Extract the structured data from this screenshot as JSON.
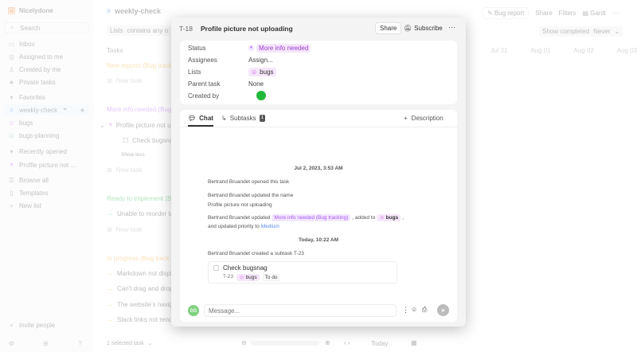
{
  "sidebar": {
    "workspace": "Nicelydone",
    "search_placeholder": "Search",
    "nav": [
      {
        "label": "Inbox",
        "icon": "inbox-icon"
      },
      {
        "label": "Assigned to me",
        "icon": "target-icon"
      },
      {
        "label": "Created by me",
        "icon": "user-icon"
      },
      {
        "label": "Private tasks",
        "icon": "lock-icon"
      }
    ],
    "favorites_label": "Favorites",
    "favorites": [
      {
        "label": "weekly-check",
        "icon": "hash-icon"
      },
      {
        "label": "bugs",
        "icon": "bug-icon"
      },
      {
        "label": "bugs-planning",
        "icon": "bug-icon"
      }
    ],
    "recent_label": "Recently opened",
    "recent": [
      {
        "label": "Profile picture not ..."
      }
    ],
    "browse_all": "Browse all",
    "templates": "Templates",
    "new_list": "New list",
    "invite": "Invite people"
  },
  "main": {
    "title": "weekly-check",
    "filter_field": "Lists",
    "filter_op": "contains any o",
    "tasks_header": "Tasks",
    "toolbar": {
      "bug_report": "Bug report",
      "share": "Share",
      "filters": "Filters",
      "gantt": "Gantt",
      "show_completed": "Show completed",
      "never": "Never"
    },
    "dates": [
      "Jul 31",
      "Aug 01",
      "Aug 02",
      "Aug 03"
    ],
    "groups": [
      {
        "label": "New reports (Bug track",
        "color": "#f5a623",
        "tasks": [],
        "new": "New task"
      },
      {
        "label": "More info needed (Bug",
        "color": "#a855f7",
        "tasks": [
          "Profile picture not u",
          "Check bugsna"
        ],
        "show_less": "Show less",
        "new": "New task"
      },
      {
        "label": "Ready to implement (B",
        "color": "#22a83a",
        "tasks": [
          "Unable to reorder ta"
        ],
        "new": "New task"
      },
      {
        "label": "In progress (Bug track",
        "color": "#f5a623",
        "tasks": [
          "Markdown not displ",
          "Can't drag and drop",
          "The website's navig",
          "Slack links not rend"
        ]
      }
    ],
    "selected": "1 selected task",
    "today": "Today"
  },
  "modal": {
    "id": "T-18",
    "title": "Profile picture not uploading",
    "share": "Share",
    "subscribe": "Subscribe",
    "props": {
      "status_label": "Status",
      "status": "More info needed",
      "assignees_label": "Assignees",
      "assignees": "Assign...",
      "lists_label": "Lists",
      "list": "bugs",
      "parent_label": "Parent task",
      "parent": "None",
      "created_label": "Created by"
    },
    "tabs": {
      "chat": "Chat",
      "subtasks": "Subtasks",
      "subtasks_count": "1",
      "description": "Description"
    },
    "chat": {
      "date1": "Jul 2, 2023, 3:53 AM",
      "e1": "Bertrand Bruandet opened this task",
      "e2": "Bertrand Bruandet updated the name",
      "e2b": "Profile picture not uploading",
      "e3a": "Bertrand Bruandet updated",
      "e3status": "More info needed (Bug tracking)",
      "e3b": ", added to",
      "e3list": "bugs",
      "e3c": ",",
      "e3d": "and updated priority to",
      "e3prio": "Medium",
      "date2": "Today, 10:22 AM",
      "e4": "Bertrand Bruandet created a subtask T-23",
      "subtask": {
        "title": "Check bugsnag",
        "id": "T-23",
        "list": "bugs",
        "status": "To do"
      },
      "avatar": "BB",
      "message_placeholder": "Message..."
    }
  },
  "colors": {
    "accent": "#9b3fd1",
    "medium": "#5b8def",
    "avatar": "#7fd17f"
  }
}
